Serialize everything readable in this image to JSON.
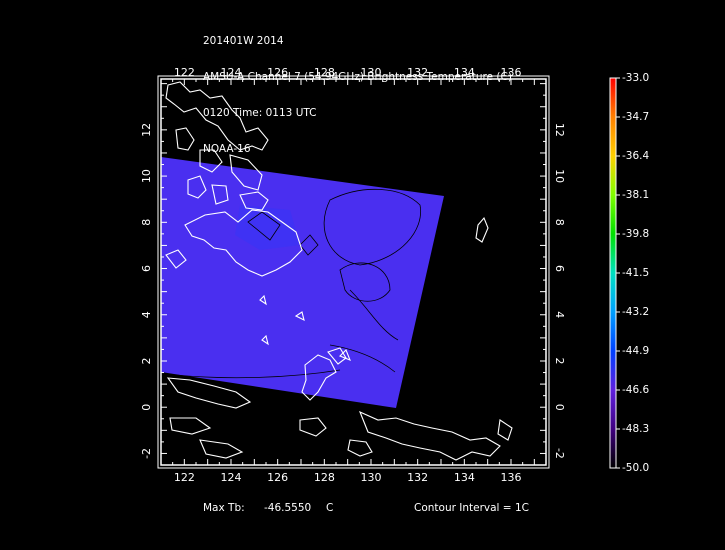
{
  "header": {
    "line1": "201401W 2014",
    "line2": "AMSU-A Channel 7 (54.94GHz) Brightness Temperature (C)",
    "line3": "0120 Time: 0113 UTC",
    "line4": "NOAA-16"
  },
  "map": {
    "lon_ticks": [
      "122",
      "124",
      "126",
      "128",
      "130",
      "132",
      "134",
      "136"
    ],
    "lat_ticks": [
      "-2",
      "0",
      "2",
      "4",
      "6",
      "8",
      "10",
      "12"
    ],
    "lon_range": [
      121,
      137.5
    ],
    "lat_range": [
      -2.5,
      14.2
    ],
    "swath_color": "#4a2ff0",
    "land_outline_color": "#ffffff",
    "contour_color": "#000000"
  },
  "colorbar": {
    "labels": [
      "-33.0",
      "-34.7",
      "-36.4",
      "-38.1",
      "-39.8",
      "-41.5",
      "-43.2",
      "-44.9",
      "-46.6",
      "-48.3",
      "-50.0"
    ],
    "colors_top_to_bottom": [
      "#ff0000",
      "#ff8000",
      "#ffd000",
      "#80ff00",
      "#00e000",
      "#00e0c0",
      "#00a0ff",
      "#0040ff",
      "#6020e0",
      "#400080",
      "#000000"
    ]
  },
  "footer": {
    "max_label": "Max Tb:",
    "max_value": "-46.5550",
    "max_unit": "C",
    "contour": "Contour Interval = 1C"
  }
}
